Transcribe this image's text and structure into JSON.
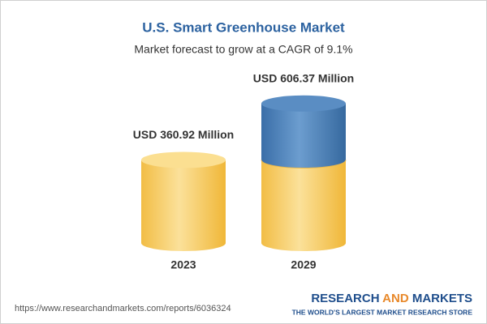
{
  "chart_data": {
    "type": "bar",
    "title": "U.S. Smart Greenhouse Market",
    "subtitle": "Market forecast to grow at a CAGR of 9.1%",
    "categories": [
      "2023",
      "2029"
    ],
    "values": [
      360.92,
      606.37
    ],
    "value_labels": [
      "USD 360.92 Million",
      "USD 606.37 Million"
    ],
    "color": "#f5c65a",
    "growth_color": "#4a7fb8"
  },
  "footer": {
    "url": "https://www.researchandmarkets.com/reports/6036324",
    "brand": [
      "RESEARCH",
      "AND",
      "MARKETS"
    ],
    "tagline": "THE WORLD'S LARGEST MARKET RESEARCH STORE"
  }
}
